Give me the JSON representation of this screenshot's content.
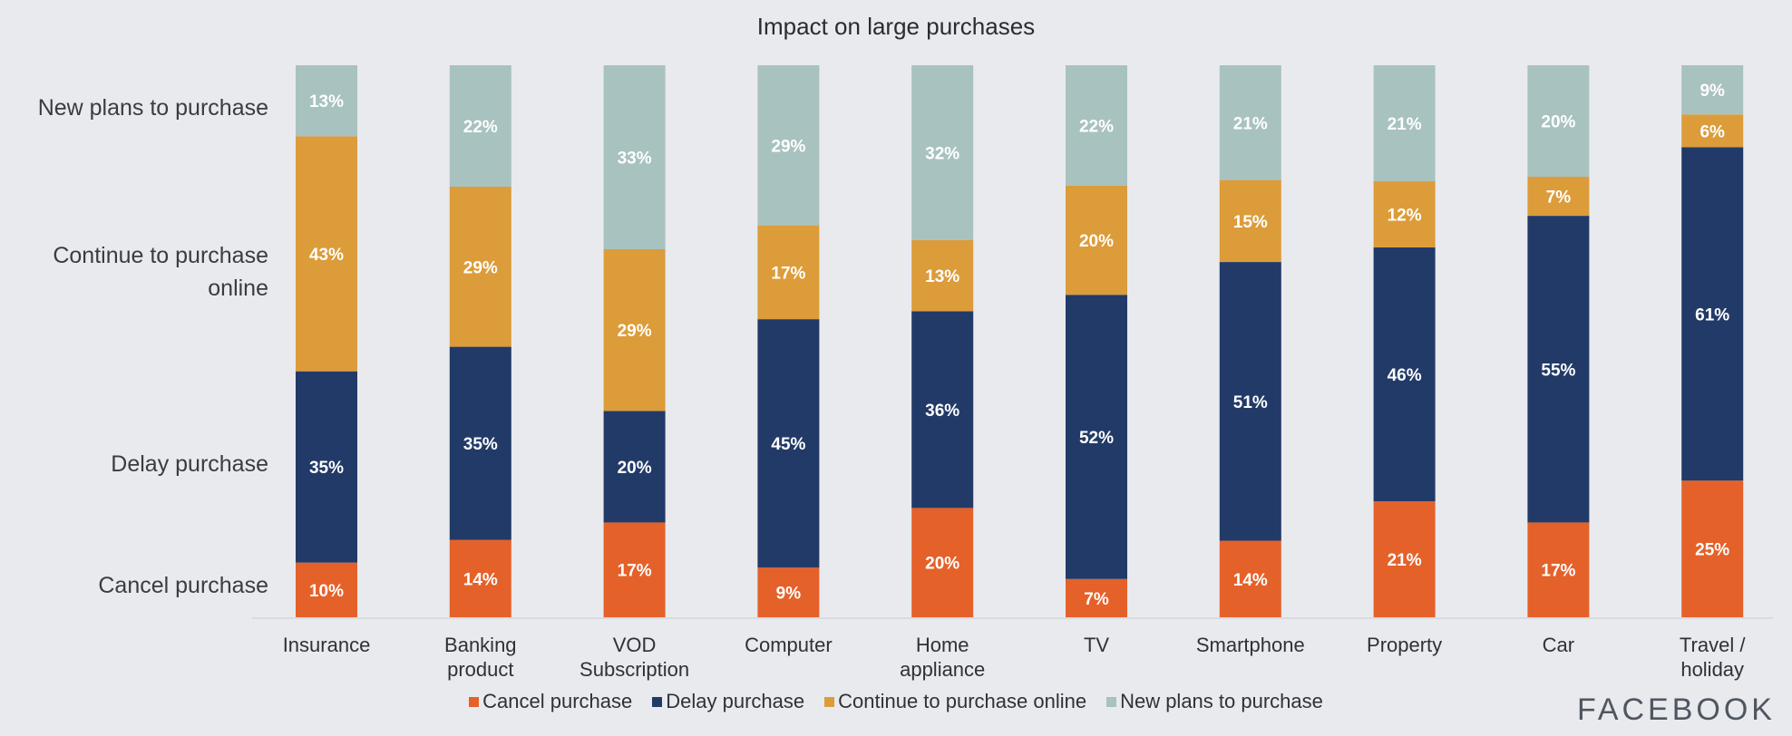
{
  "chart_data": {
    "type": "bar",
    "stacked": true,
    "title": "Impact on large purchases",
    "categories": [
      "Insurance",
      "Banking product",
      "VOD Subscription",
      "Computer",
      "Home appliance",
      "TV",
      "Smartphone",
      "Property",
      "Car",
      "Travel / holiday"
    ],
    "category_lines": [
      [
        "Insurance"
      ],
      [
        "Banking",
        "product"
      ],
      [
        "VOD",
        "Subscription"
      ],
      [
        "Computer"
      ],
      [
        "Home",
        "appliance"
      ],
      [
        "TV"
      ],
      [
        "Smartphone"
      ],
      [
        "Property"
      ],
      [
        "Car"
      ],
      [
        "Travel /",
        "holiday"
      ]
    ],
    "series": [
      {
        "name": "Cancel purchase",
        "color": "#e5612a",
        "values": [
          10,
          14,
          17,
          9,
          20,
          7,
          14,
          21,
          17,
          25
        ]
      },
      {
        "name": "Delay purchase",
        "color": "#223a68",
        "values": [
          35,
          35,
          20,
          45,
          36,
          52,
          51,
          46,
          55,
          61
        ]
      },
      {
        "name": "Continue to purchase online",
        "color": "#dc9c3a",
        "values": [
          43,
          29,
          29,
          17,
          13,
          20,
          15,
          12,
          7,
          6
        ]
      },
      {
        "name": "New plans to purchase",
        "color": "#a8c2c0",
        "values": [
          13,
          22,
          33,
          29,
          32,
          22,
          21,
          21,
          20,
          9
        ]
      }
    ],
    "ylim": [
      0,
      100
    ],
    "grid": false,
    "legend": "bottom",
    "side_labels": [
      [
        "Cancel purchase"
      ],
      [
        "Delay purchase"
      ],
      [
        "Continue to purchase",
        "online"
      ],
      [
        "New plans to purchase"
      ]
    ]
  },
  "brand": "FACEBOOK"
}
